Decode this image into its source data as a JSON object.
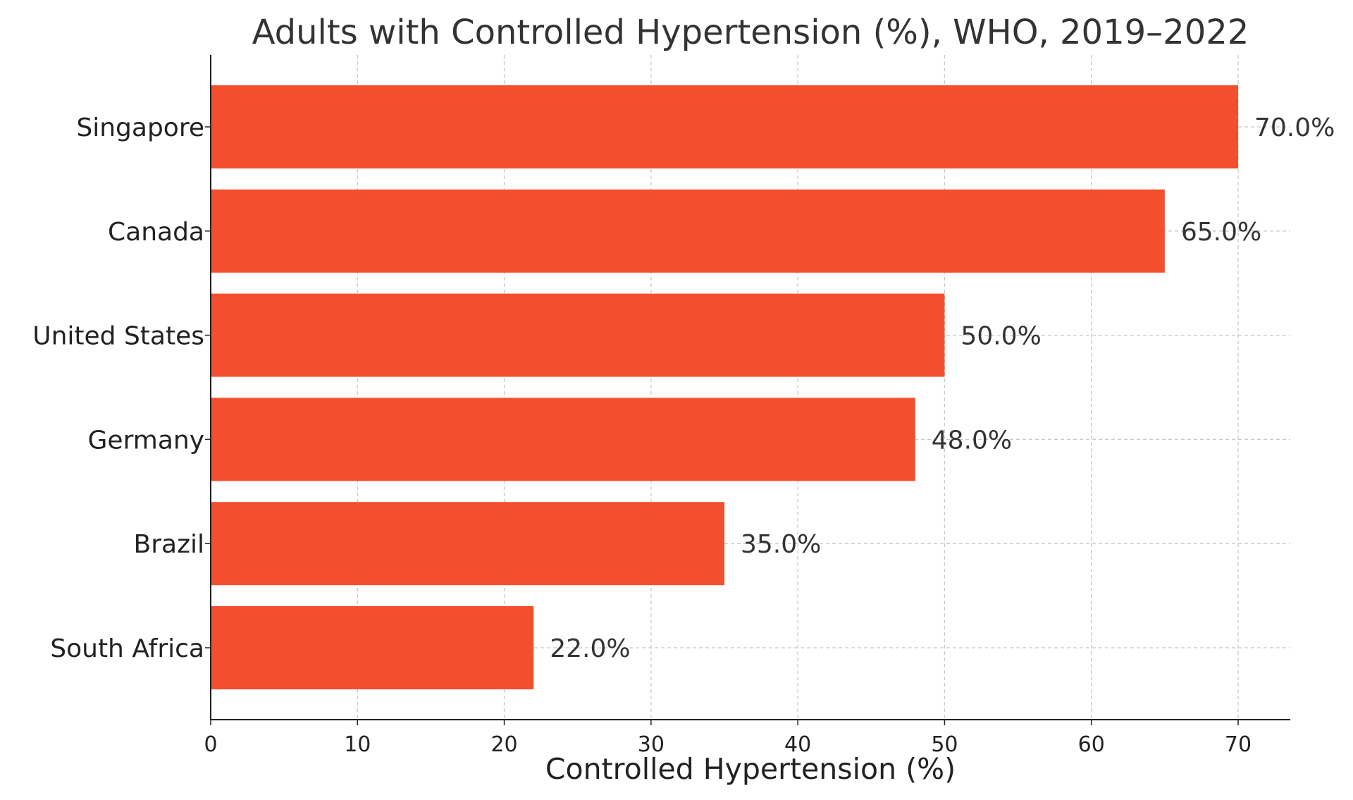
{
  "chart_data": {
    "type": "bar",
    "orientation": "horizontal",
    "title": "Adults with Controlled Hypertension (%), WHO, 2019–2022",
    "xlabel": "Controlled Hypertension (%)",
    "ylabel": "",
    "categories": [
      "Singapore",
      "Canada",
      "United States",
      "Germany",
      "Brazil",
      "South Africa"
    ],
    "values": [
      70,
      65,
      50,
      48,
      35,
      22
    ],
    "data_labels": [
      "70.0%",
      "65.0%",
      "50.0%",
      "48.0%",
      "35.0%",
      "22.0%"
    ],
    "xlim": [
      0,
      73.5
    ],
    "xticks": [
      0,
      10,
      20,
      30,
      40,
      50,
      60,
      70
    ],
    "bar_color": "#f34f2e",
    "grid": true
  }
}
